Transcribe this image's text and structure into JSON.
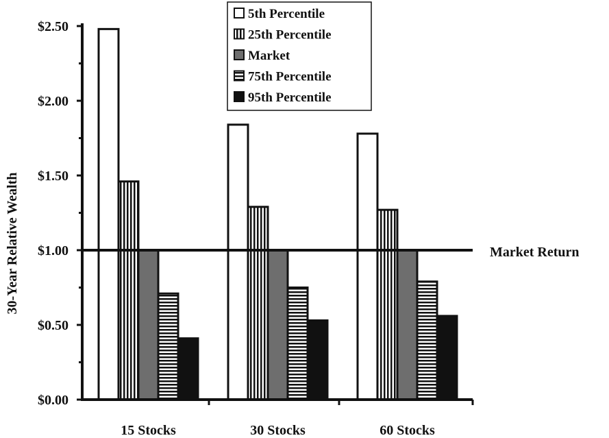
{
  "chart_data": {
    "type": "bar",
    "title": "",
    "xlabel": "",
    "ylabel": "30-Year Relative Wealth",
    "ylim": [
      0,
      2.5
    ],
    "yticks": [
      {
        "value": 0,
        "label": "$0.00"
      },
      {
        "value": 0.5,
        "label": "$0.50"
      },
      {
        "value": 1.0,
        "label": "$1.00"
      },
      {
        "value": 1.5,
        "label": "$1.50"
      },
      {
        "value": 2.0,
        "label": "$2.00"
      },
      {
        "value": 2.5,
        "label": "$2.50"
      }
    ],
    "categories": [
      "15 Stocks",
      "30 Stocks",
      "60 Stocks"
    ],
    "series": [
      {
        "name": "5th Percentile",
        "pattern": "white",
        "values": [
          2.48,
          1.84,
          1.78
        ]
      },
      {
        "name": "25th Percentile",
        "pattern": "vertical-stripes",
        "values": [
          1.46,
          1.29,
          1.27
        ]
      },
      {
        "name": "Market",
        "pattern": "gray",
        "values": [
          1.0,
          1.0,
          1.0
        ]
      },
      {
        "name": "75th Percentile",
        "pattern": "horizontal-stripes",
        "values": [
          0.71,
          0.75,
          0.79
        ]
      },
      {
        "name": "95th Percentile",
        "pattern": "black",
        "values": [
          0.41,
          0.53,
          0.56
        ]
      }
    ],
    "reference_line": {
      "value": 1.0,
      "label": "Market Return"
    },
    "legend_position": "top-center",
    "grid": false
  }
}
